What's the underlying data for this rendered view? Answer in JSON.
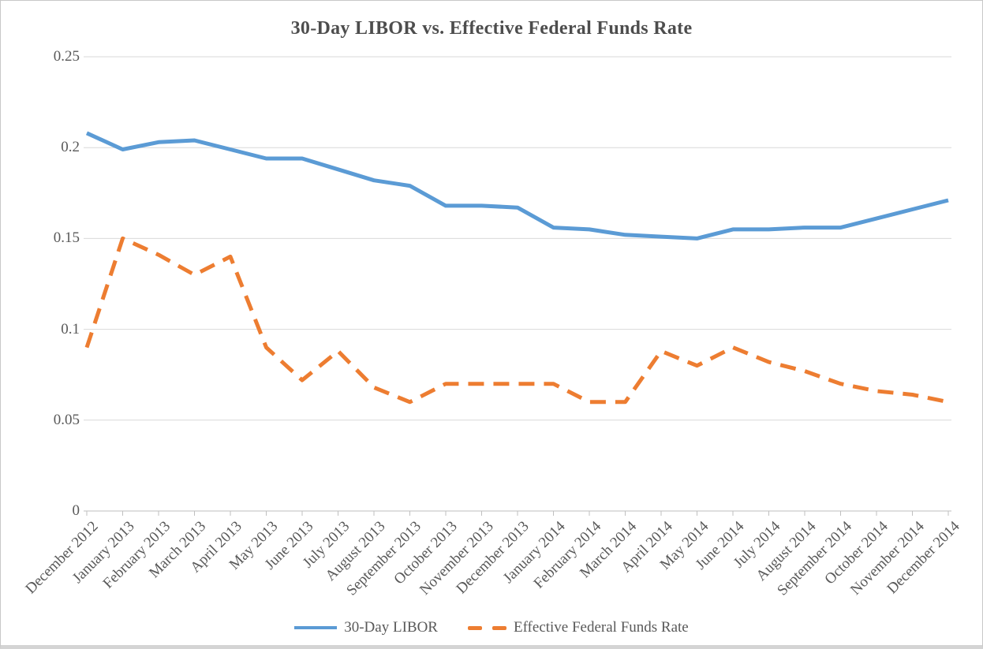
{
  "chart_data": {
    "type": "line",
    "title": "30-Day LIBOR vs. Effective Federal Funds Rate",
    "categories": [
      "December 2012",
      "January 2013",
      "February 2013",
      "March 2013",
      "April 2013",
      "May 2013",
      "June 2013",
      "July 2013",
      "August 2013",
      "September 2013",
      "October 2013",
      "November 2013",
      "December 2013",
      "January 2014",
      "February 2014",
      "March 2014",
      "April 2014",
      "May 2014",
      "June 2014",
      "July 2014",
      "August 2014",
      "September 2014",
      "October 2014",
      "November 2014",
      "December 2014"
    ],
    "series": [
      {
        "name": "30-Day LIBOR",
        "color": "#5B9BD5",
        "style": "solid",
        "values": [
          0.208,
          0.199,
          0.203,
          0.204,
          0.199,
          0.194,
          0.194,
          0.188,
          0.182,
          0.179,
          0.168,
          0.168,
          0.167,
          0.156,
          0.155,
          0.152,
          0.151,
          0.15,
          0.155,
          0.155,
          0.156,
          0.156,
          0.161,
          0.166,
          0.171
        ]
      },
      {
        "name": "Effective Federal Funds Rate",
        "color": "#ED7D31",
        "style": "dashed",
        "values": [
          0.09,
          0.15,
          0.141,
          0.13,
          0.14,
          0.09,
          0.072,
          0.088,
          0.068,
          0.06,
          0.07,
          0.07,
          0.07,
          0.07,
          0.06,
          0.06,
          0.088,
          0.08,
          0.09,
          0.082,
          0.077,
          0.07,
          0.066,
          0.064,
          0.06
        ]
      }
    ],
    "y_axis": {
      "min": 0,
      "max": 0.25,
      "tick_interval": 0.05,
      "tick_labels": [
        "0",
        "0.05",
        "0.1",
        "0.15",
        "0.2",
        "0.25"
      ]
    },
    "x_axis_label_rotation_deg": -45,
    "legend_position": "bottom",
    "grid": "horizontal",
    "colors": {
      "gridline": "#d9d9d9",
      "axis_line": "#bfbfbf",
      "labels": "#595959",
      "title": "#4d4d4d",
      "frame_border": "#c8c8c8"
    }
  }
}
